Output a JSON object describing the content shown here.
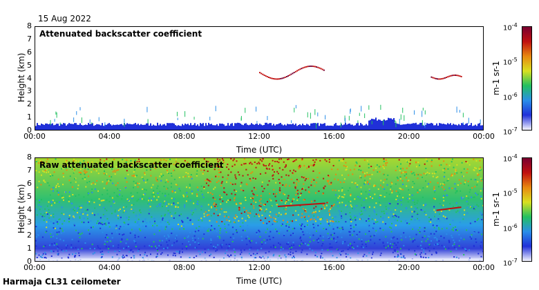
{
  "date": "15 Aug 2022",
  "footer": "Harmaja CL31 ceilometer",
  "colors": {
    "colormap": [
      "#f4f4ff",
      "#2030d8",
      "#2a8ee8",
      "#22c060",
      "#d8e020",
      "#e88810",
      "#c01010",
      "#780030"
    ]
  },
  "chart_data": [
    {
      "type": "heatmap",
      "title": "Attenuated backscatter coefficient",
      "xlabel": "Time (UTC)",
      "ylabel": "Height (km)",
      "xticks": [
        "00:00",
        "04:00",
        "08:00",
        "12:00",
        "16:00",
        "20:00",
        "00:00"
      ],
      "yticks": [
        "0",
        "1",
        "2",
        "3",
        "4",
        "5",
        "6",
        "7",
        "8"
      ],
      "xlim": [
        0,
        24
      ],
      "ylim": [
        0,
        8
      ],
      "colorbar": {
        "ticks": [
          "10-7",
          "10-6",
          "10-5",
          "10-4"
        ],
        "label": "m-1 sr-1",
        "scale": "log",
        "range": [
          1e-07,
          0.0001
        ]
      },
      "features": [
        {
          "name": "boundary layer",
          "x_hours": [
            0,
            24
          ],
          "height_km": [
            0,
            0.5
          ]
        },
        {
          "name": "cloud layer",
          "x_hours": [
            12,
            15.5
          ],
          "height_km": [
            4.0,
            5.0
          ]
        },
        {
          "name": "cloud layer",
          "x_hours": [
            21.2,
            22.8
          ],
          "height_km": [
            4.0,
            4.3
          ]
        }
      ]
    },
    {
      "type": "heatmap",
      "title": "Raw attenuated backscatter coefficient",
      "xlabel": "Time (UTC)",
      "ylabel": "Height (km)",
      "xticks": [
        "00:00",
        "04:00",
        "08:00",
        "12:00",
        "16:00",
        "20:00",
        "00:00"
      ],
      "yticks": [
        "0",
        "1",
        "2",
        "3",
        "4",
        "5",
        "6",
        "7",
        "8"
      ],
      "xlim": [
        0,
        24
      ],
      "ylim": [
        0,
        8
      ],
      "colorbar": {
        "ticks": [
          "10-7",
          "10-6",
          "10-5",
          "10-4"
        ],
        "label": "m-1 sr-1",
        "scale": "log",
        "range": [
          1e-07,
          0.0001
        ]
      },
      "features": [
        {
          "name": "noisy high background",
          "x_hours": [
            9,
            16
          ],
          "height_km": [
            4,
            8
          ]
        },
        {
          "name": "cloud layer",
          "x_hours": [
            13,
            15.5
          ],
          "height_km": [
            4.3,
            4.6
          ]
        },
        {
          "name": "cloud layer",
          "x_hours": [
            21.5,
            22.8
          ],
          "height_km": [
            4.0,
            4.3
          ]
        }
      ]
    }
  ]
}
